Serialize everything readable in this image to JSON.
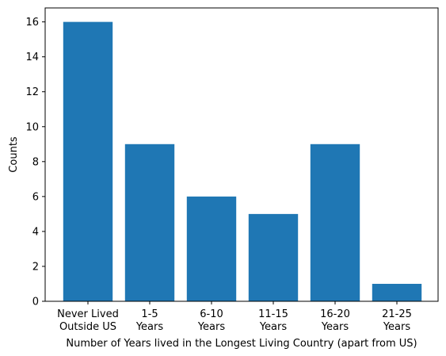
{
  "chart_data": {
    "type": "bar",
    "title": "",
    "xlabel": "Number of Years lived in the Longest Living Country (apart from US)",
    "ylabel": "Counts",
    "categories": [
      [
        "Never Lived",
        "Outside US"
      ],
      [
        "1-5",
        "Years"
      ],
      [
        "6-10",
        "Years"
      ],
      [
        "11-15",
        "Years"
      ],
      [
        "16-20",
        "Years"
      ],
      [
        "21-25",
        "Years"
      ]
    ],
    "values": [
      16,
      9,
      6,
      5,
      9,
      1
    ],
    "ylim": [
      0,
      16.8
    ],
    "yticks": [
      0,
      2,
      4,
      6,
      8,
      10,
      12,
      14,
      16
    ],
    "bar_color": "#1f77b4",
    "grid": false,
    "legend": "none"
  }
}
